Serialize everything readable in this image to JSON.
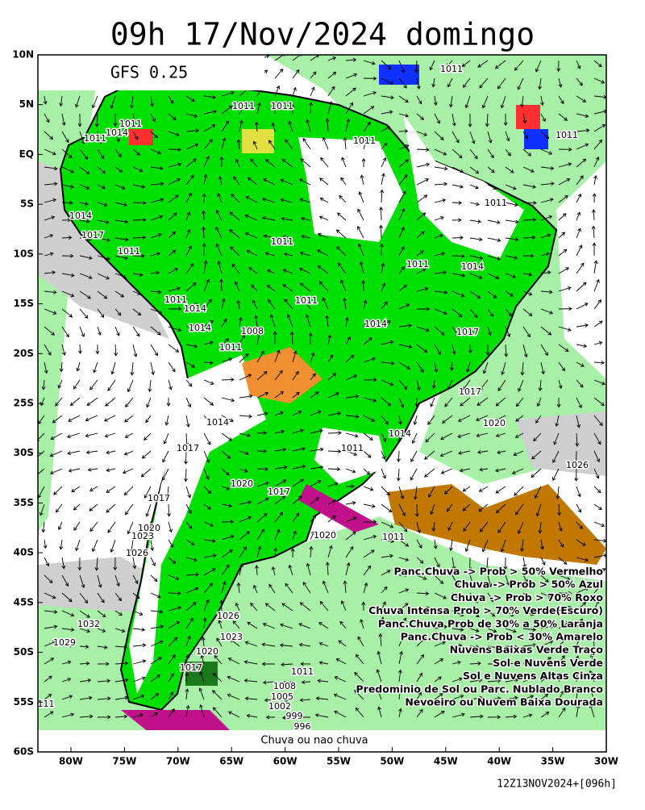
{
  "header": {
    "title": "09h 17/Nov/2024 domingo"
  },
  "map": {
    "model": "GFS 0.25",
    "lat_labels": [
      "10N",
      "5N",
      "EQ",
      "5S",
      "10S",
      "15S",
      "20S",
      "25S",
      "30S",
      "35S",
      "40S",
      "45S",
      "50S",
      "55S",
      "60S"
    ],
    "lon_labels": [
      "80W",
      "75W",
      "70W",
      "65W",
      "60W",
      "55W",
      "50W",
      "45W",
      "40W",
      "35W",
      "30W"
    ],
    "pressure_labels": [
      "1011",
      "1011",
      "1011",
      "1011",
      "1011",
      "1014",
      "1011",
      "1011",
      "1011",
      "1014",
      "1017",
      "1011",
      "1011",
      "1011",
      "1014",
      "1011",
      "1014",
      "1011",
      "1014",
      "1008",
      "1011",
      "1014",
      "1017",
      "1017",
      "1014",
      "1020",
      "1014",
      "1017",
      "1011",
      "1026",
      "1020",
      "1017",
      "1017",
      "1020",
      "1023",
      "1020",
      "1011",
      "1026",
      "1026",
      "1032",
      "1023",
      "1029",
      "1020",
      "1017",
      "1011",
      "1008",
      "1005",
      "1002",
      "999",
      "996",
      "111"
    ],
    "legend": [
      "Panc.Chuva -> Prob > 50% Vermelho",
      "Chuva -> Prob > 50% Azul",
      "Chuva -> Prob > 70% Roxo",
      "Chuva Intensa Prob > 70% Verde(Escuro)",
      "Panc.Chuva Prob de 30% a 50% Laranja",
      "Panc.Chuva -> Prob < 30% Amarelo",
      "Nuvens Baixas Verde Traço",
      "Sol e Nuvens Verde",
      "Sol e Nuvens Altas Cinza",
      "Predominio de Sol ou Parc. Nublado Branco",
      "Nevoeiro ou Nuvem Baixa Dourada"
    ],
    "caption": "Chuva ou nao chuva"
  },
  "footer": {
    "run": "12Z13NOV2024+[096h]"
  }
}
